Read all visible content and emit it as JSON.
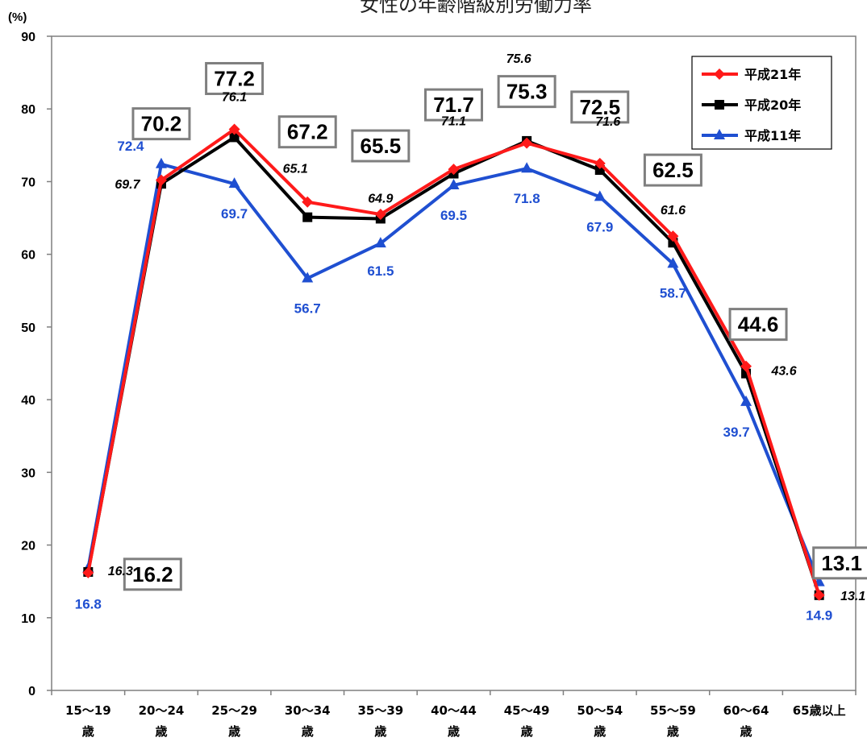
{
  "chart_data": {
    "type": "line",
    "title": "女性の年齢階級別労働力率",
    "ylabel": "(%)",
    "ylim": [
      0,
      90
    ],
    "yticks": [
      "0",
      "10",
      "20",
      "30",
      "40",
      "50",
      "60",
      "70",
      "80",
      "90"
    ],
    "grid": false,
    "legend_position": "top-right",
    "categories": [
      [
        "15～19",
        "歳"
      ],
      [
        "20～24",
        "歳"
      ],
      [
        "25～29",
        "歳"
      ],
      [
        "30～34",
        "歳"
      ],
      [
        "35～39",
        "歳"
      ],
      [
        "40～44",
        "歳"
      ],
      [
        "45～49",
        "歳"
      ],
      [
        "50～54",
        "歳"
      ],
      [
        "55～59",
        "歳"
      ],
      [
        "60～64",
        "歳"
      ],
      [
        "65歳以上",
        ""
      ]
    ],
    "series": [
      {
        "name": "平成21年",
        "color": "#ff1a1a",
        "marker": "diamond",
        "values": [
          16.2,
          70.2,
          77.2,
          67.2,
          65.5,
          71.7,
          75.3,
          72.5,
          62.5,
          44.6,
          13.1
        ],
        "labels": [
          "16.2",
          "70.2",
          "77.2",
          "67.2",
          "65.5",
          "71.7",
          "75.3",
          "72.5",
          "62.5",
          "44.6",
          "13.1"
        ]
      },
      {
        "name": "平成20年",
        "color": "#000000",
        "marker": "square",
        "values": [
          16.3,
          69.7,
          76.1,
          65.1,
          64.9,
          71.1,
          75.6,
          71.6,
          61.6,
          43.6,
          13.1
        ],
        "labels": [
          "16.3",
          "69.7",
          "76.1",
          "65.1",
          "64.9",
          "71.1",
          "75.6",
          "71.6",
          "61.6",
          "43.6",
          "13.1"
        ]
      },
      {
        "name": "平成11年",
        "color": "#1f4fd1",
        "marker": "triangle",
        "values": [
          16.8,
          72.4,
          69.7,
          56.7,
          61.5,
          69.5,
          71.8,
          67.9,
          58.7,
          39.7,
          14.9
        ],
        "labels": [
          "16.8",
          "72.4",
          "69.7",
          "56.7",
          "61.5",
          "69.5",
          "71.8",
          "67.9",
          "58.7",
          "39.7",
          "14.9"
        ]
      }
    ]
  }
}
